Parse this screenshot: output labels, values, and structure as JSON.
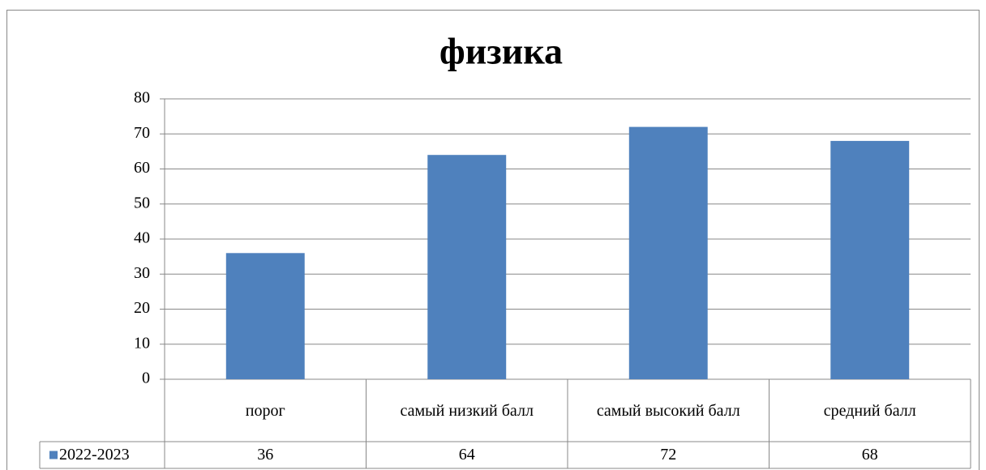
{
  "chart_data": {
    "type": "bar",
    "title": "физика",
    "categories": [
      "порог",
      "самый низкий балл",
      "самый высокий балл",
      "средний балл"
    ],
    "series": [
      {
        "name": "2022-2023",
        "color": "#4f81bd",
        "values": [
          36,
          64,
          72,
          68
        ]
      }
    ],
    "ylim": [
      0,
      80
    ],
    "yticks": [
      0,
      10,
      20,
      30,
      40,
      50,
      60,
      70,
      80
    ],
    "grid": true
  }
}
